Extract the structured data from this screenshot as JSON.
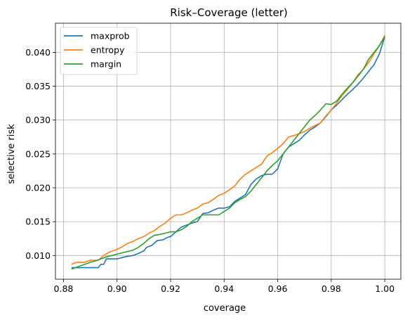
{
  "chart_data": {
    "type": "line",
    "title": "Risk–Coverage (letter)",
    "xlabel": "coverage",
    "ylabel": "selective risk",
    "xlim": [
      0.877,
      1.006
    ],
    "ylim": [
      0.0065,
      0.0443
    ],
    "x_ticks": [
      0.88,
      0.9,
      0.92,
      0.94,
      0.96,
      0.98,
      1.0
    ],
    "x_tick_labels": [
      "0.88",
      "0.90",
      "0.92",
      "0.94",
      "0.96",
      "0.98",
      "1.00"
    ],
    "y_ticks": [
      0.01,
      0.015,
      0.02,
      0.025,
      0.03,
      0.035,
      0.04
    ],
    "y_tick_labels": [
      "0.010",
      "0.015",
      "0.020",
      "0.025",
      "0.030",
      "0.035",
      "0.040"
    ],
    "grid": true,
    "legend_position": "top-left",
    "series": [
      {
        "name": "maxprob",
        "color": "#1f77b4",
        "x": [
          0.883,
          0.886,
          0.89,
          0.893,
          0.894,
          0.895,
          0.896,
          0.898,
          0.9,
          0.902,
          0.904,
          0.906,
          0.908,
          0.91,
          0.911,
          0.913,
          0.915,
          0.917,
          0.919,
          0.92,
          0.922,
          0.924,
          0.926,
          0.928,
          0.93,
          0.932,
          0.934,
          0.936,
          0.938,
          0.94,
          0.942,
          0.944,
          0.946,
          0.948,
          0.95,
          0.952,
          0.954,
          0.956,
          0.958,
          0.96,
          0.962,
          0.964,
          0.966,
          0.968,
          0.97,
          0.972,
          0.974,
          0.976,
          0.978,
          0.98,
          0.982,
          0.984,
          0.986,
          0.988,
          0.99,
          0.992,
          0.994,
          0.996,
          0.998,
          1.0
        ],
        "y": [
          0.0082,
          0.0082,
          0.0082,
          0.0082,
          0.0087,
          0.0087,
          0.0095,
          0.0095,
          0.0095,
          0.0097,
          0.0099,
          0.01,
          0.0103,
          0.0107,
          0.0112,
          0.0115,
          0.0122,
          0.0123,
          0.0127,
          0.0128,
          0.0135,
          0.0142,
          0.0145,
          0.0148,
          0.015,
          0.0162,
          0.0163,
          0.0167,
          0.017,
          0.017,
          0.0172,
          0.018,
          0.0185,
          0.019,
          0.0205,
          0.0213,
          0.0218,
          0.022,
          0.022,
          0.0228,
          0.025,
          0.026,
          0.0265,
          0.027,
          0.0278,
          0.0285,
          0.029,
          0.0296,
          0.0305,
          0.0315,
          0.0322,
          0.033,
          0.0338,
          0.0345,
          0.0353,
          0.0362,
          0.0372,
          0.0382,
          0.0398,
          0.0423
        ]
      },
      {
        "name": "entropy",
        "color": "#ff7f0e",
        "x": [
          0.883,
          0.885,
          0.888,
          0.89,
          0.893,
          0.895,
          0.897,
          0.9,
          0.902,
          0.904,
          0.906,
          0.908,
          0.91,
          0.912,
          0.914,
          0.916,
          0.918,
          0.92,
          0.922,
          0.924,
          0.926,
          0.928,
          0.93,
          0.932,
          0.934,
          0.936,
          0.938,
          0.94,
          0.942,
          0.944,
          0.946,
          0.948,
          0.95,
          0.952,
          0.954,
          0.956,
          0.958,
          0.96,
          0.962,
          0.964,
          0.966,
          0.968,
          0.97,
          0.972,
          0.974,
          0.976,
          0.978,
          0.98,
          0.982,
          0.984,
          0.986,
          0.988,
          0.99,
          0.992,
          0.994,
          0.996,
          0.998,
          1.0
        ],
        "y": [
          0.0087,
          0.009,
          0.009,
          0.0093,
          0.0093,
          0.01,
          0.0105,
          0.0109,
          0.0113,
          0.0118,
          0.0121,
          0.0125,
          0.0128,
          0.0133,
          0.0137,
          0.0143,
          0.0148,
          0.0155,
          0.016,
          0.016,
          0.0163,
          0.0167,
          0.017,
          0.0176,
          0.0178,
          0.0183,
          0.0189,
          0.0192,
          0.0197,
          0.0203,
          0.0213,
          0.022,
          0.0225,
          0.023,
          0.0235,
          0.0247,
          0.0252,
          0.0258,
          0.0265,
          0.0275,
          0.0277,
          0.028,
          0.0283,
          0.0288,
          0.0292,
          0.0296,
          0.0306,
          0.0315,
          0.0325,
          0.0336,
          0.0345,
          0.0355,
          0.0367,
          0.0375,
          0.0385,
          0.0398,
          0.041,
          0.0425
        ]
      },
      {
        "name": "margin",
        "color": "#2ca02c",
        "x": [
          0.883,
          0.885,
          0.888,
          0.89,
          0.892,
          0.894,
          0.896,
          0.898,
          0.9,
          0.902,
          0.904,
          0.906,
          0.908,
          0.91,
          0.912,
          0.914,
          0.916,
          0.918,
          0.92,
          0.922,
          0.924,
          0.926,
          0.928,
          0.93,
          0.932,
          0.934,
          0.936,
          0.938,
          0.94,
          0.942,
          0.944,
          0.946,
          0.948,
          0.95,
          0.952,
          0.954,
          0.956,
          0.958,
          0.96,
          0.962,
          0.964,
          0.966,
          0.968,
          0.97,
          0.972,
          0.974,
          0.976,
          0.978,
          0.98,
          0.982,
          0.984,
          0.986,
          0.988,
          0.99,
          0.992,
          0.994,
          0.996,
          0.998,
          1.0
        ],
        "y": [
          0.008,
          0.0083,
          0.0087,
          0.009,
          0.0092,
          0.0095,
          0.0098,
          0.01,
          0.0102,
          0.0104,
          0.0106,
          0.0108,
          0.0112,
          0.0118,
          0.0125,
          0.013,
          0.0131,
          0.0133,
          0.0135,
          0.0135,
          0.0138,
          0.0143,
          0.015,
          0.0155,
          0.016,
          0.016,
          0.016,
          0.016,
          0.0165,
          0.017,
          0.0178,
          0.0183,
          0.0187,
          0.0195,
          0.0205,
          0.0215,
          0.0225,
          0.0233,
          0.024,
          0.025,
          0.026,
          0.027,
          0.028,
          0.029,
          0.03,
          0.0307,
          0.0315,
          0.0324,
          0.0323,
          0.0328,
          0.0338,
          0.0347,
          0.0355,
          0.0365,
          0.0375,
          0.039,
          0.04,
          0.041,
          0.0423
        ]
      }
    ]
  }
}
